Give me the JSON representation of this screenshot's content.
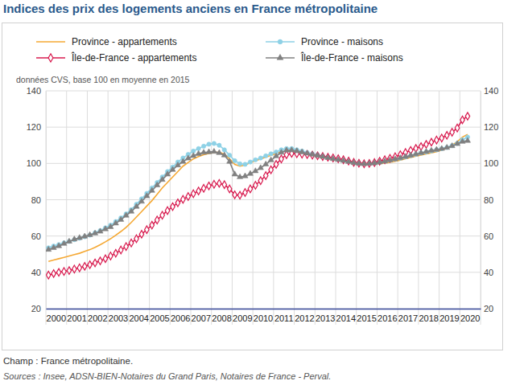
{
  "chart_data": {
    "type": "line",
    "title": "Indices des prix des logements anciens en France métropolitaine",
    "subtitle": "données CVS, base 100 en moyenne en 2015",
    "note": "Champ : France métropolitaine.",
    "source": "Sources : Insee, ADSN-BIEN-Notaires du Grand Paris, Notaires de France - Perval.",
    "categories": [
      "2000",
      null,
      null,
      null,
      "2001",
      null,
      null,
      null,
      "2002",
      null,
      null,
      null,
      "2003",
      null,
      null,
      null,
      "2004",
      null,
      null,
      null,
      "2005",
      null,
      null,
      null,
      "2006",
      null,
      null,
      null,
      "2007",
      null,
      null,
      null,
      "2008",
      null,
      null,
      null,
      "2009",
      null,
      null,
      null,
      "2010",
      null,
      null,
      null,
      "2011",
      null,
      null,
      null,
      "2012",
      null,
      null,
      null,
      "2013",
      null,
      null,
      null,
      "2014",
      null,
      null,
      null,
      "2015",
      null,
      null,
      null,
      "2016",
      null,
      null,
      null,
      "2017",
      null,
      null,
      null,
      "2018",
      null,
      null,
      null,
      "2019",
      null,
      null,
      null,
      "2020",
      null,
      null,
      null
    ],
    "ylim": [
      20,
      140
    ],
    "yticks": [
      20,
      40,
      60,
      80,
      100,
      120,
      140
    ],
    "grid": true,
    "legend": "top",
    "series": [
      {
        "name": "Province - appartements",
        "color": "#f5a833",
        "marker": "none",
        "line_style": "solid",
        "values": [
          46,
          46.8,
          47.5,
          48.2,
          49,
          49.8,
          50.5,
          51.5,
          52.5,
          53.8,
          55.2,
          56.8,
          58.5,
          60.5,
          62.5,
          64.8,
          67.5,
          70.5,
          73.5,
          76.5,
          79.5,
          83,
          86.5,
          89.5,
          92.5,
          95.5,
          98.5,
          100.5,
          102.5,
          103.8,
          104.8,
          105.5,
          106,
          106.2,
          105,
          102.5,
          99.5,
          98.5,
          99,
          100.5,
          101.5,
          102.5,
          103.5,
          104.5,
          105.5,
          106.5,
          107,
          106.8,
          106.3,
          105.8,
          105.3,
          104.8,
          104.3,
          103.8,
          103.3,
          102.8,
          102.3,
          101.8,
          101.2,
          100.6,
          100.2,
          99.9,
          99.9,
          100,
          100,
          100.2,
          100.6,
          101.2,
          101.8,
          102.6,
          103.3,
          104,
          104.6,
          105.2,
          105.8,
          106.5,
          107.3,
          108.4,
          110,
          112,
          114.5,
          116,
          null,
          null
        ]
      },
      {
        "name": "Province - maisons",
        "color": "#8ed1e6",
        "marker": "circle",
        "line_style": "solid",
        "values": [
          53.5,
          54.5,
          55.3,
          56.2,
          57,
          58,
          58.8,
          59.6,
          60.5,
          61.8,
          63,
          64.5,
          66,
          68,
          70,
          72.2,
          74.5,
          77.5,
          80.5,
          83.5,
          86.5,
          89.5,
          92.5,
          95.5,
          98,
          100.8,
          103,
          105,
          106.8,
          108.2,
          109.5,
          110.6,
          111,
          110,
          107.5,
          104.5,
          101.5,
          99.8,
          99.5,
          100.8,
          102,
          103,
          104.2,
          105.3,
          106.3,
          107.5,
          108.2,
          108.2,
          107.5,
          106.8,
          106,
          105.3,
          104.7,
          104.1,
          103.5,
          102.9,
          102.3,
          101.7,
          101.1,
          100.5,
          100.1,
          99.8,
          99.9,
          100.2,
          100.6,
          101.1,
          101.7,
          102.3,
          102.9,
          103.6,
          104.3,
          105,
          105.7,
          106.3,
          106.9,
          107.5,
          108.1,
          108.8,
          109.8,
          111,
          113,
          114.5,
          null,
          null
        ]
      },
      {
        "name": "Île-de-France - appartements",
        "color": "#d81b4f",
        "marker": "diamond",
        "line_style": "solid",
        "values": [
          38.5,
          39.3,
          40,
          40.5,
          41,
          41.8,
          42.5,
          43.3,
          44.2,
          45.2,
          46.3,
          47.5,
          49,
          50.5,
          52.3,
          54.2,
          56.2,
          58.5,
          61,
          63.5,
          66,
          68.8,
          71.5,
          74,
          76.2,
          78.3,
          80.2,
          81.8,
          83.3,
          84.8,
          86.3,
          87.6,
          88.5,
          89,
          88.3,
          86,
          82.7,
          82.5,
          84,
          86,
          88,
          90.5,
          93.3,
          96.5,
          99.5,
          102.5,
          104.8,
          105.5,
          105.3,
          105.1,
          104.9,
          104.6,
          104.2,
          103.8,
          103.4,
          103,
          102.6,
          102,
          101.3,
          100.6,
          100.1,
          99.8,
          100,
          100.5,
          101.2,
          102,
          102.8,
          103.7,
          104.8,
          106,
          107.2,
          108.3,
          109.3,
          110.5,
          111.7,
          112.9,
          114,
          115.5,
          117.2,
          119.5,
          124,
          126,
          null,
          null
        ]
      },
      {
        "name": "Île-de-France - maisons",
        "color": "#808080",
        "marker": "triangle",
        "line_style": "solid",
        "values": [
          52.5,
          53.5,
          54.5,
          55.8,
          57,
          58.2,
          59,
          59.8,
          60.6,
          61.5,
          62.5,
          63.8,
          65,
          67,
          69,
          71.3,
          73.5,
          76.2,
          79,
          82,
          85,
          88,
          91,
          94,
          96.5,
          99,
          101,
          102.8,
          104.2,
          105.3,
          106,
          106.3,
          106.5,
          105.8,
          104.5,
          101,
          94,
          92.5,
          93,
          94.3,
          95.8,
          97.5,
          99.5,
          101.8,
          104,
          106,
          107.2,
          107.3,
          106.8,
          106.2,
          105.5,
          104.9,
          104.3,
          103.7,
          103.1,
          102.5,
          102,
          101.5,
          100.9,
          100.3,
          99.9,
          99.7,
          99.9,
          100.2,
          100.6,
          101.2,
          101.8,
          102.4,
          103,
          103.7,
          104.4,
          105.1,
          105.8,
          106.5,
          107.1,
          107.6,
          108.1,
          108.7,
          109.6,
          110.8,
          112,
          112.5,
          null,
          null
        ]
      }
    ]
  }
}
